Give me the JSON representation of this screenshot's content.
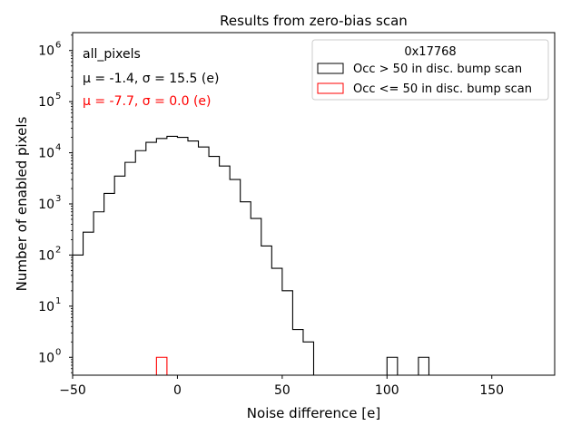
{
  "chart_data": {
    "type": "histogram",
    "title": "Results from zero-bias scan",
    "xlabel": "Noise difference [e]",
    "ylabel": "Number of enabled pixels",
    "xlim": [
      -50,
      180
    ],
    "ylim_log10": [
      -0.35,
      6.35
    ],
    "yscale": "log",
    "x_ticks": [
      -50,
      0,
      50,
      100,
      150
    ],
    "x_tick_labels": [
      "−50",
      "0",
      "50",
      "100",
      "150"
    ],
    "y_tick_exponents": [
      0,
      1,
      2,
      3,
      4,
      5,
      6
    ],
    "y_tick_base": "10",
    "bin_width": 5,
    "annotations": {
      "label": "all_pixels",
      "stats_black": "μ = -1.4, σ = 15.5 (e)",
      "stats_red": "μ = -7.7, σ = 0.0 (e)"
    },
    "legend": {
      "title": "0x17768",
      "position": "top-right"
    },
    "series": [
      {
        "name": "Occ > 50 in disc. bump scan",
        "color": "#000000",
        "bins": [
          [
            -50,
            100
          ],
          [
            -45,
            280
          ],
          [
            -40,
            700
          ],
          [
            -35,
            1600
          ],
          [
            -30,
            3500
          ],
          [
            -25,
            6500
          ],
          [
            -20,
            11000
          ],
          [
            -15,
            16000
          ],
          [
            -10,
            19000
          ],
          [
            -5,
            21000
          ],
          [
            0,
            20000
          ],
          [
            5,
            17000
          ],
          [
            10,
            13000
          ],
          [
            15,
            8500
          ],
          [
            20,
            5500
          ],
          [
            25,
            3000
          ],
          [
            30,
            1100
          ],
          [
            35,
            520
          ],
          [
            40,
            150
          ],
          [
            45,
            55
          ],
          [
            50,
            20
          ],
          [
            55,
            3.5
          ],
          [
            60,
            2
          ],
          [
            100,
            1
          ],
          [
            115,
            1
          ]
        ]
      },
      {
        "name": "Occ <= 50 in disc. bump scan",
        "color": "#ff0000",
        "bins": [
          [
            -10,
            1
          ]
        ]
      }
    ]
  }
}
